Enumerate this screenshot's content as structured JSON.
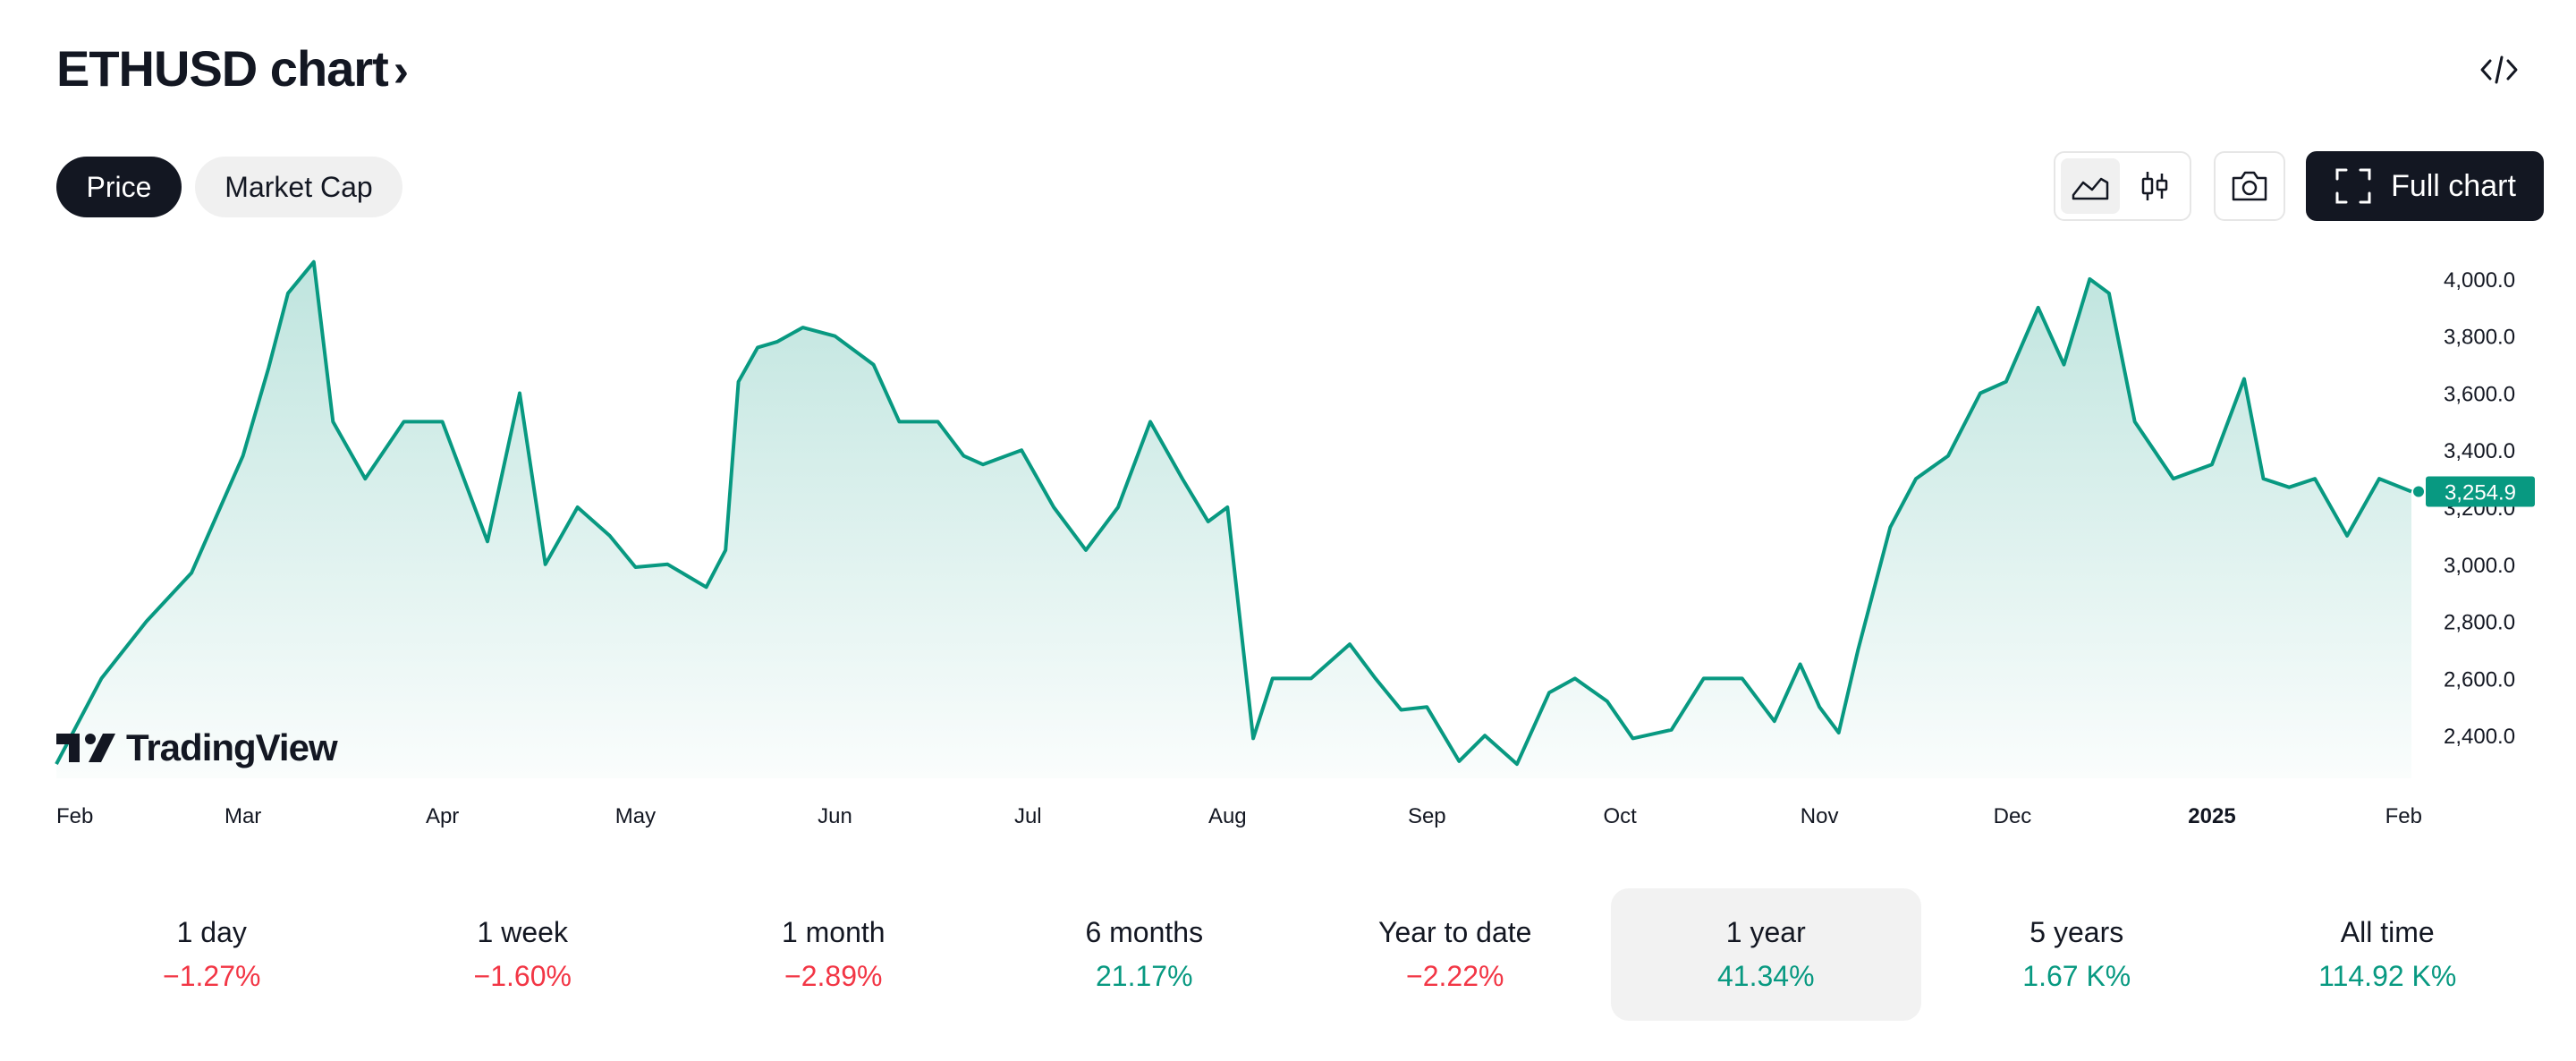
{
  "header": {
    "title": "ETHUSD chart",
    "chevron": "›"
  },
  "tabs": [
    {
      "label": "Price",
      "active": true
    },
    {
      "label": "Market Cap",
      "active": false
    }
  ],
  "toolbar": {
    "full_chart_label": "Full chart",
    "icons": [
      "area-chart-icon",
      "candlestick-icon",
      "camera-icon",
      "fullscreen-icon",
      "embed-code-icon"
    ]
  },
  "brand": {
    "logo_text": "TradingView"
  },
  "colors": {
    "line": "#089981",
    "positive": "#089981",
    "negative": "#f23645",
    "dark": "#131722"
  },
  "chart_data": {
    "type": "area",
    "title": "",
    "xlabel": "",
    "ylabel": "",
    "x_ticks": [
      "Feb",
      "Mar",
      "Apr",
      "May",
      "Jun",
      "Jul",
      "Aug",
      "Sep",
      "Oct",
      "Nov",
      "Dec",
      "2025",
      "Feb"
    ],
    "y_ticks": [
      "4,000.0",
      "3,800.0",
      "3,600.0",
      "3,400.0",
      "3,200.0",
      "3,000.0",
      "2,800.0",
      "2,600.0",
      "2,400.0"
    ],
    "ylim": [
      2250,
      4100
    ],
    "last_price_label": "3,254.9",
    "series": [
      {
        "x": [
          "2024-02-01",
          "2024-02-08",
          "2024-02-15",
          "2024-02-22",
          "2024-03-01",
          "2024-03-05",
          "2024-03-08",
          "2024-03-12",
          "2024-03-15",
          "2024-03-20",
          "2024-03-26",
          "2024-04-01",
          "2024-04-08",
          "2024-04-13",
          "2024-04-17",
          "2024-04-22",
          "2024-04-27",
          "2024-05-01",
          "2024-05-06",
          "2024-05-12",
          "2024-05-15",
          "2024-05-17",
          "2024-05-20",
          "2024-05-23",
          "2024-05-27",
          "2024-06-01",
          "2024-06-07",
          "2024-06-11",
          "2024-06-17",
          "2024-06-21",
          "2024-06-24",
          "2024-06-30",
          "2024-07-05",
          "2024-07-10",
          "2024-07-15",
          "2024-07-20",
          "2024-07-25",
          "2024-07-29",
          "2024-08-01",
          "2024-08-05",
          "2024-08-08",
          "2024-08-14",
          "2024-08-20",
          "2024-08-24",
          "2024-08-28",
          "2024-09-01",
          "2024-09-06",
          "2024-09-10",
          "2024-09-15",
          "2024-09-20",
          "2024-09-24",
          "2024-09-29",
          "2024-10-03",
          "2024-10-09",
          "2024-10-14",
          "2024-10-20",
          "2024-10-25",
          "2024-10-29",
          "2024-11-01",
          "2024-11-04",
          "2024-11-07",
          "2024-11-12",
          "2024-11-16",
          "2024-11-21",
          "2024-11-26",
          "2024-11-30",
          "2024-12-05",
          "2024-12-09",
          "2024-12-13",
          "2024-12-16",
          "2024-12-20",
          "2024-12-26",
          "2025-01-01",
          "2025-01-06",
          "2025-01-09",
          "2025-01-13",
          "2025-01-17",
          "2025-01-22",
          "2025-01-27",
          "2025-02-01"
        ],
        "values": [
          2300,
          2600,
          2800,
          2970,
          3380,
          3690,
          3950,
          4060,
          3500,
          3300,
          3500,
          3500,
          3080,
          3600,
          3000,
          3200,
          3100,
          2990,
          3000,
          2920,
          3050,
          3640,
          3760,
          3780,
          3830,
          3800,
          3700,
          3500,
          3500,
          3380,
          3350,
          3400,
          3200,
          3050,
          3200,
          3500,
          3300,
          3150,
          3200,
          2390,
          2600,
          2600,
          2720,
          2600,
          2490,
          2500,
          2310,
          2400,
          2300,
          2550,
          2600,
          2520,
          2390,
          2420,
          2600,
          2600,
          2450,
          2650,
          2500,
          2410,
          2700,
          3130,
          3300,
          3380,
          3600,
          3640,
          3900,
          3700,
          4000,
          3950,
          3500,
          3300,
          3350,
          3650,
          3300,
          3270,
          3300,
          3100,
          3300,
          3254.9
        ]
      }
    ]
  },
  "periods": [
    {
      "label": "1 day",
      "value": "−1.27%",
      "trend": "neg",
      "selected": false
    },
    {
      "label": "1 week",
      "value": "−1.60%",
      "trend": "neg",
      "selected": false
    },
    {
      "label": "1 month",
      "value": "−2.89%",
      "trend": "neg",
      "selected": false
    },
    {
      "label": "6 months",
      "value": "21.17%",
      "trend": "pos",
      "selected": false
    },
    {
      "label": "Year to date",
      "value": "−2.22%",
      "trend": "neg",
      "selected": false
    },
    {
      "label": "1 year",
      "value": "41.34%",
      "trend": "pos",
      "selected": true
    },
    {
      "label": "5 years",
      "value": "1.67 K%",
      "trend": "pos",
      "selected": false
    },
    {
      "label": "All time",
      "value": "114.92 K%",
      "trend": "pos",
      "selected": false
    }
  ]
}
